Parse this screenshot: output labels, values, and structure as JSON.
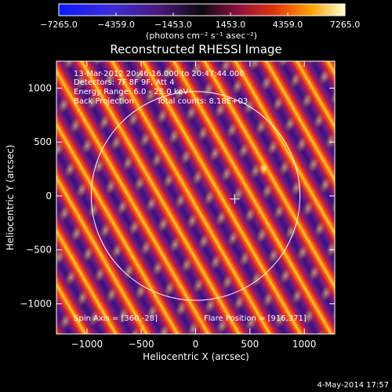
{
  "chart_data": {
    "type": "heatmap",
    "title": "Reconstructed RHESSI Image",
    "xlabel": "Heliocentric X (arcsec)",
    "ylabel": "Heliocentric Y (arcsec)",
    "xlim": [
      -1280,
      1280
    ],
    "ylim": [
      -1280,
      1250
    ],
    "x_ticks": [
      -1000,
      -500,
      0,
      500,
      1000
    ],
    "x_tick_labels": [
      "−1000",
      "−500",
      "0",
      "500",
      "1000"
    ],
    "y_ticks": [
      -1000,
      -500,
      0,
      500,
      1000
    ],
    "y_tick_labels": [
      "−1000",
      "−500",
      "0",
      "500",
      "1000"
    ],
    "colorbar": {
      "min": -7265.0,
      "max": 7265.0,
      "tick_labels": [
        "−7265.0",
        "−4359.0",
        "−1453.0",
        "1453.0",
        "4359.0",
        "7265.0"
      ],
      "unit_label": "(photons cm⁻² s⁻¹ asec⁻²)"
    },
    "annotations": [
      "13-Mar-2012 20:46:16.000 to 20:47:44.000",
      "Detectors: 7F 8F 9F, Att 4",
      "Energy Range: 6.0 - 25.0 keV",
      "Back Projection",
      "Total counts: 8.18E+03"
    ],
    "spin_axis_label": "Spin Axis = [360,-28]",
    "flare_position_label": "Flare Position = [916,371]",
    "solar_disk_center": [
      0,
      0
    ],
    "solar_disk_radius": 960,
    "marker_position": [
      360,
      -28
    ]
  },
  "footer_date": "4-May-2014 17:57"
}
